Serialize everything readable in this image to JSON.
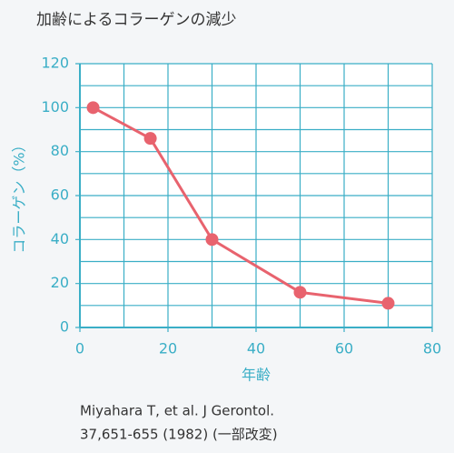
{
  "chart_data": {
    "type": "line",
    "title": "加齢によるコラーゲンの減少",
    "x_label": "年齢",
    "y_label": "コラーゲン（%）",
    "source": [
      "Miyahara T, et al. J Gerontol.",
      "37,651-655 (1982) (一部改変)"
    ],
    "x": [
      3,
      16,
      30,
      50,
      70
    ],
    "series": [
      {
        "name": "コラーゲン",
        "color": "#e8636e",
        "values": [
          100,
          86,
          40,
          16,
          11
        ]
      }
    ],
    "xlim": [
      0,
      80
    ],
    "ylim": [
      0,
      120
    ],
    "xticks": [
      0,
      20,
      40,
      60,
      80
    ],
    "yticks": [
      0,
      20,
      40,
      60,
      80,
      100,
      120
    ],
    "x_minor_ticks": [
      10,
      30,
      50,
      70
    ],
    "y_minor_ticks": [
      10,
      30,
      50,
      70,
      90,
      110
    ],
    "grid": true,
    "axis_color": "#3aaec6"
  }
}
